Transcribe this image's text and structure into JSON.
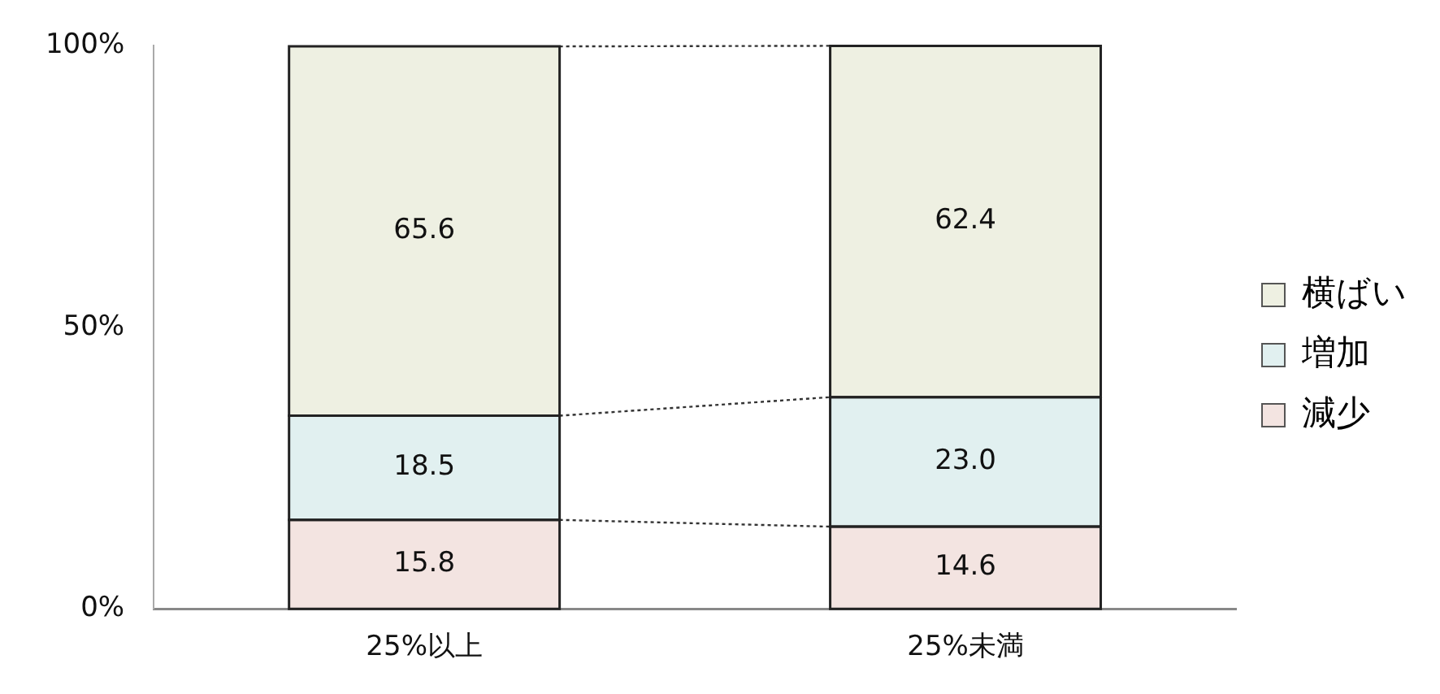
{
  "chart_data": {
    "type": "bar",
    "stacked": true,
    "categories": [
      "25%以上",
      "25%未満"
    ],
    "series": [
      {
        "name": "減少",
        "color": "#f3e4e1",
        "values": [
          15.8,
          14.6
        ],
        "value_labels": [
          "15.8",
          "14.6"
        ]
      },
      {
        "name": "増加",
        "color": "#e1f0f0",
        "values": [
          18.5,
          23.0
        ],
        "value_labels": [
          "18.5",
          "23.0"
        ]
      },
      {
        "name": "横ばい",
        "color": "#eef0e2",
        "values": [
          65.6,
          62.4
        ],
        "value_labels": [
          "65.6",
          "62.4"
        ]
      }
    ],
    "ylim": [
      0,
      100
    ],
    "yticks": [
      {
        "value": 0,
        "label": "0%"
      },
      {
        "value": 50,
        "label": "50%"
      },
      {
        "value": 100,
        "label": "100%"
      }
    ],
    "grid": false,
    "legend": "right"
  }
}
